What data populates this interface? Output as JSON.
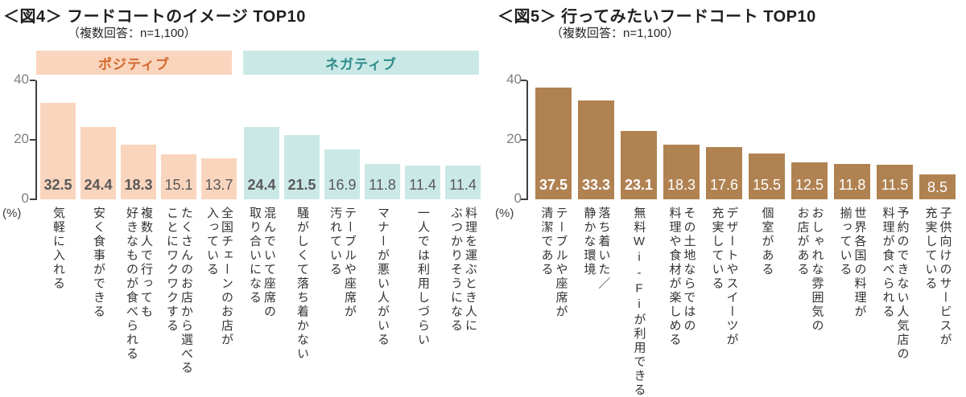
{
  "page": {
    "background": "#FFFFFF"
  },
  "chart_data": [
    {
      "type": "bar",
      "title": "＜図4＞ フードコートのイメージ TOP10",
      "subtitle": "（複数回答：n=1,100）",
      "ylabel": "(%)",
      "ylim": [
        0,
        40
      ],
      "y_ticks": [
        40,
        20,
        0
      ],
      "grid": false,
      "legend_position": "top",
      "groups": [
        {
          "name": "ポジティブ",
          "color": "#FAD5BE",
          "text_color": "#D4682C"
        },
        {
          "name": "ネガティブ",
          "color": "#CAE9E6",
          "text_color": "#2E8B8B"
        }
      ],
      "bar_groups": [
        0,
        0,
        0,
        0,
        0,
        1,
        1,
        1,
        1,
        1,
        1
      ],
      "categories": [
        "気軽に入れる",
        "安く食事ができる",
        "複数人で行っても好きなものが食べられる",
        "たくさんのお店から選べることにワクワクする",
        "全国チェーンのお店が入っている",
        "混んでいて座席の取り合いになる",
        "騒がしくて落ち着かない",
        "テーブルや座席が汚れている",
        "マナーが悪い人がいる",
        "一人では利用しづらい",
        "料理を運ぶとき人にぶつかりそうになる"
      ],
      "label_lines": [
        [
          "気軽に入れる"
        ],
        [
          "安く食事ができる"
        ],
        [
          "複数人で行っても",
          "好きなものが食べられる"
        ],
        [
          "たくさんのお店から選べる",
          "ことにワクワクする"
        ],
        [
          "全国チェーンのお店が",
          "入っている"
        ],
        [
          "混んでいて座席の",
          "取り合いになる"
        ],
        [
          "騒がしくて落ち着かない"
        ],
        [
          "テーブルや座席が",
          "汚れている"
        ],
        [
          "マナーが悪い人がいる"
        ],
        [
          "一人では利用しづらい"
        ],
        [
          "料理を運ぶとき人に",
          "ぶつかりそうになる"
        ]
      ],
      "values": [
        32.5,
        24.4,
        18.3,
        15.1,
        13.7,
        24.4,
        21.5,
        16.9,
        11.8,
        11.4,
        11.4
      ],
      "value_labels": [
        "32.5",
        "24.4",
        "18.3",
        "15.1",
        "13.7",
        "24.4",
        "21.5",
        "16.9",
        "11.8",
        "11.4",
        "11.4"
      ],
      "bold_flags": [
        true,
        true,
        true,
        false,
        false,
        true,
        true,
        false,
        false,
        false,
        false
      ],
      "value_label_color": "#595959"
    },
    {
      "type": "bar",
      "title": "＜図5＞ 行ってみたいフードコート TOP10",
      "subtitle": "（複数回答：n=1,100）",
      "ylabel": "(%)",
      "ylim": [
        0,
        40
      ],
      "y_ticks": [
        40,
        20,
        0
      ],
      "grid": false,
      "bar_color": "#B08252",
      "categories": [
        "テーブルや座席が清潔である",
        "落ち着いた／静かな環境",
        "無料Wi-Fiが利用できる",
        "その土地ならではの料理や食材が楽しめる",
        "デザートやスイーツが充実している",
        "個室がある",
        "おしゃれな雰囲気のお店がある",
        "世界各国の料理が揃っている",
        "予約のできない人気店の料理が食べられる",
        "子供向けのサービスが充実している"
      ],
      "label_lines": [
        [
          "テーブルや座席が",
          "清潔である"
        ],
        [
          "落ち着いた／",
          "静かな環境"
        ],
        [
          "無料Wi-Fiが利用できる"
        ],
        [
          "その土地ならではの",
          "料理や食材が楽しめる"
        ],
        [
          "デザートやスイーツが",
          "充実している"
        ],
        [
          "個室がある"
        ],
        [
          "おしゃれな雰囲気の",
          "お店がある"
        ],
        [
          "世界各国の料理が",
          "揃っている"
        ],
        [
          "予約のできない人気店の",
          "料理が食べられる"
        ],
        [
          "子供向けのサービスが",
          "充実している"
        ]
      ],
      "values": [
        37.5,
        33.3,
        23.1,
        18.3,
        17.6,
        15.5,
        12.5,
        11.8,
        11.5,
        8.5
      ],
      "value_labels": [
        "37.5",
        "33.3",
        "23.1",
        "18.3",
        "17.6",
        "15.5",
        "12.5",
        "11.8",
        "11.5",
        "8.5"
      ],
      "bold_flags": [
        true,
        true,
        true,
        false,
        false,
        false,
        false,
        false,
        false,
        false
      ],
      "value_label_color": "#FFFFFF"
    }
  ]
}
